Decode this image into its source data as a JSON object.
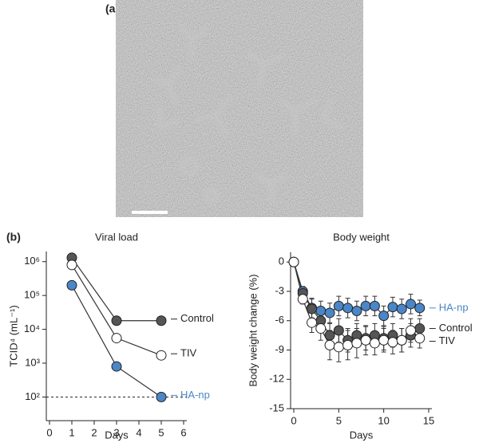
{
  "panel_labels": {
    "a": "(a)",
    "b": "(b)"
  },
  "chart_data": [
    {
      "type": "line",
      "title": "Viral load",
      "x_label": "Days",
      "y_label": "TCID⁴ (mL⁻¹)",
      "log_y": true,
      "xlim": [
        0,
        6
      ],
      "xticks": [
        0,
        1,
        2,
        3,
        4,
        5,
        6
      ],
      "ylim": [
        20,
        2000000
      ],
      "yticks": [
        {
          "value": 100,
          "label": "10²"
        },
        {
          "value": 1000,
          "label": "10³"
        },
        {
          "value": 10000,
          "label": "10⁴"
        },
        {
          "value": 100000,
          "label": "10⁵"
        },
        {
          "value": 1000000,
          "label": "10⁶"
        }
      ],
      "reference_line": 100,
      "x": [
        1,
        3,
        5
      ],
      "series": [
        {
          "name": "Control",
          "color": "#555555",
          "label_color": "#222222",
          "values": [
            1300000,
            18000,
            18000
          ]
        },
        {
          "name": "TIV",
          "color": "#ffffff",
          "label_color": "#222222",
          "values": [
            800000,
            5500,
            1700
          ]
        },
        {
          "name": "HA-np",
          "color": "#4a86c8",
          "label_color": "#4a86c8",
          "values": [
            200000,
            800,
            100
          ]
        }
      ]
    },
    {
      "type": "line",
      "title": "Body weight",
      "x_label": "Days",
      "y_label": "Body weight change (%)",
      "log_y": false,
      "xlim": [
        0,
        15
      ],
      "xticks": [
        0,
        5,
        10,
        15
      ],
      "ylim": [
        -15,
        1
      ],
      "yticks": [
        0,
        -3,
        -6,
        -9,
        -12,
        -15
      ],
      "x": [
        0,
        1,
        2,
        3,
        4,
        5,
        6,
        7,
        8,
        9,
        10,
        11,
        12,
        13,
        14
      ],
      "series": [
        {
          "name": "HA-np",
          "color": "#4a86c8",
          "label_color": "#4a86c8",
          "values": [
            0,
            -3,
            -4.7,
            -5,
            -5.2,
            -4.5,
            -4.7,
            -5,
            -4.5,
            -4.5,
            -5.5,
            -4.6,
            -4.8,
            -4.3,
            -4.7
          ],
          "errors": [
            0,
            0.5,
            1,
            1,
            1,
            1,
            1,
            1,
            1,
            1,
            1,
            1,
            1,
            1,
            0.8
          ]
        },
        {
          "name": "Control",
          "color": "#555555",
          "label_color": "#222222",
          "values": [
            0,
            -3.2,
            -4.8,
            -6,
            -7.5,
            -7,
            -8,
            -7.5,
            -7.8,
            -7.5,
            -7.8,
            -7.5,
            -8,
            -7.5,
            -6.8
          ],
          "errors": [
            0,
            0.5,
            1,
            1.2,
            1.2,
            1.2,
            1.2,
            1.2,
            1.2,
            1.2,
            1.2,
            1.2,
            1.2,
            1.2,
            1
          ]
        },
        {
          "name": "TIV",
          "color": "#ffffff",
          "label_color": "#222222",
          "values": [
            0,
            -3.8,
            -6.2,
            -6.8,
            -8.5,
            -8.7,
            -8.5,
            -8.3,
            -8,
            -8.3,
            -8,
            -8.2,
            -8,
            -7,
            -7.8
          ],
          "errors": [
            0,
            0.5,
            1,
            1.2,
            1.5,
            1.5,
            1.5,
            1.5,
            1.5,
            1.2,
            1.2,
            1.2,
            1.2,
            1.2,
            1
          ]
        }
      ]
    }
  ]
}
